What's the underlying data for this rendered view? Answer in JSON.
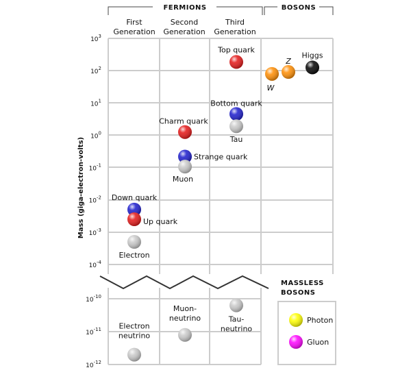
{
  "header": {
    "fermions": "FERMIONS",
    "bosons": "BOSONS",
    "massless_bosons": [
      "MASSLESS",
      "BOSONS"
    ],
    "columns": [
      [
        "First",
        "Generation"
      ],
      [
        "Second",
        "Generation"
      ],
      [
        "Third",
        "Generation"
      ]
    ]
  },
  "chart_data": {
    "type": "scatter",
    "ylabel": "Mass (giga-electron-volts)",
    "yscale": "log",
    "ylim_upper": [
      -4,
      3
    ],
    "ylim_lower": [
      -12,
      -10
    ],
    "y_ticks_upper": [
      {
        "base": "10",
        "exp": "3"
      },
      {
        "base": "10",
        "exp": "2"
      },
      {
        "base": "10",
        "exp": "1"
      },
      {
        "base": "10",
        "exp": "0"
      },
      {
        "base": "10",
        "exp": "-1"
      },
      {
        "base": "10",
        "exp": "-2"
      },
      {
        "base": "10",
        "exp": "-3"
      },
      {
        "base": "10",
        "exp": "-4"
      }
    ],
    "y_ticks_lower": [
      {
        "base": "10",
        "exp": "-10"
      },
      {
        "base": "10",
        "exp": "-11"
      },
      {
        "base": "10",
        "exp": "-12"
      }
    ],
    "particles": [
      {
        "name": "Top quark",
        "column": "Third Generation",
        "log_mass": 2.27,
        "color": "#e41414"
      },
      {
        "name": "Bottom quark",
        "column": "Third Generation",
        "log_mass": 0.66,
        "color": "#1a1acc"
      },
      {
        "name": "Tau",
        "column": "Third Generation",
        "log_mass": 0.28,
        "color": "#c8c8c8"
      },
      {
        "name": "Charm quark",
        "column": "Second Generation",
        "log_mass": 0.1,
        "color": "#e41414"
      },
      {
        "name": "Strange quark",
        "column": "Second Generation",
        "log_mass": -0.66,
        "color": "#1a1acc"
      },
      {
        "name": "Muon",
        "column": "Second Generation",
        "log_mass": -0.97,
        "color": "#c8c8c8"
      },
      {
        "name": "Down quark",
        "column": "First Generation",
        "log_mass": -2.3,
        "color": "#1a1acc"
      },
      {
        "name": "Up quark",
        "column": "First Generation",
        "log_mass": -2.6,
        "color": "#e41414"
      },
      {
        "name": "Electron",
        "column": "First Generation",
        "log_mass": -3.3,
        "color": "#c8c8c8"
      },
      {
        "name": "W",
        "column": "Bosons",
        "log_mass": 1.9,
        "color": "#ff8c00"
      },
      {
        "name": "Z",
        "column": "Bosons",
        "log_mass": 1.96,
        "color": "#ff8c00"
      },
      {
        "name": "Higgs",
        "column": "Bosons",
        "log_mass": 2.1,
        "color": "#000000"
      },
      {
        "name": "Electron-neutrino",
        "column": "First Generation",
        "log_mass": -11.7,
        "color": "#c8c8c8",
        "label_lines": [
          "Electron",
          "neutrino"
        ]
      },
      {
        "name": "Muon-neutrino",
        "column": "Second Generation",
        "log_mass": -11.1,
        "color": "#c8c8c8",
        "label_lines": [
          "Muon-",
          "neutrino"
        ]
      },
      {
        "name": "Tau-neutrino",
        "column": "Third Generation",
        "log_mass": -10.2,
        "color": "#c8c8c8",
        "label_lines": [
          "Tau-",
          "neutrino"
        ]
      }
    ],
    "massless": [
      {
        "name": "Photon",
        "color": "#ffff00"
      },
      {
        "name": "Gluon",
        "color": "#ff00ff"
      }
    ]
  }
}
